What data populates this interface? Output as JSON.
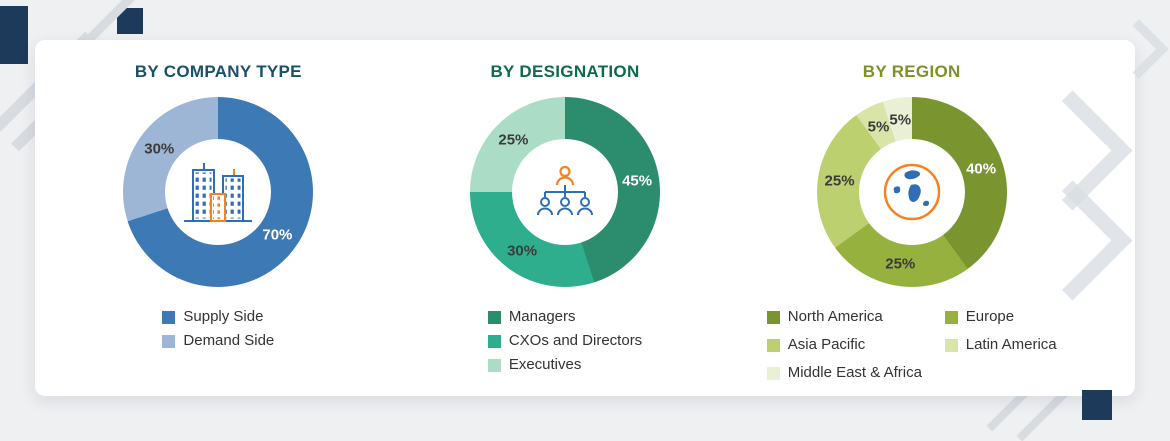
{
  "palette": {
    "page_background": "#eef0f2",
    "card_background": "#ffffff",
    "accent_navy": "#1e3a5a",
    "icon_orange": "#f58220",
    "icon_blue": "#2f6db5",
    "decor_gray": "#d8dce1"
  },
  "chart_data": [
    {
      "type": "pie",
      "subtype": "donut",
      "title": "BY COMPANY TYPE",
      "title_color": "#1a506b",
      "labels": [
        "Supply Side",
        "Demand Side"
      ],
      "values": [
        70,
        30
      ],
      "colors": [
        "#3d7ab5",
        "#9db6d6"
      ],
      "pct_label_colors": [
        "#ffffff",
        "#3b3b3b"
      ],
      "data_labels": [
        "70%",
        "30%"
      ],
      "center_icon": "buildings-icon",
      "legend_position": "bottom",
      "legend_columns": 1
    },
    {
      "type": "pie",
      "subtype": "donut",
      "title": "BY DESIGNATION",
      "title_color": "#0f6a4d",
      "labels": [
        "Managers",
        "CXOs and Directors",
        "Executives"
      ],
      "values": [
        45,
        30,
        25
      ],
      "colors": [
        "#2c8c6e",
        "#2fae8e",
        "#aadcc6"
      ],
      "pct_label_colors": [
        "#ffffff",
        "#3b3b3b",
        "#3b3b3b"
      ],
      "data_labels": [
        "45%",
        "30%",
        "25%"
      ],
      "center_icon": "org-chart-icon",
      "legend_position": "bottom",
      "legend_columns": 1
    },
    {
      "type": "pie",
      "subtype": "donut",
      "title": "BY REGION",
      "title_color": "#7f9027",
      "labels": [
        "North America",
        "Europe",
        "Asia Pacific",
        "Latin America",
        "Middle East & Africa"
      ],
      "values": [
        40,
        25,
        25,
        5,
        5
      ],
      "colors": [
        "#7a9430",
        "#97b13f",
        "#bcd06f",
        "#d9e4a9",
        "#eaf0d5"
      ],
      "pct_label_colors": [
        "#ffffff",
        "#3b3b3b",
        "#3b3b3b",
        "#3b3b3b",
        "#3b3b3b"
      ],
      "data_labels": [
        "40%",
        "25%",
        "25%",
        "5%",
        "5%"
      ],
      "center_icon": "globe-icon",
      "legend_position": "bottom",
      "legend_columns": 2
    }
  ]
}
